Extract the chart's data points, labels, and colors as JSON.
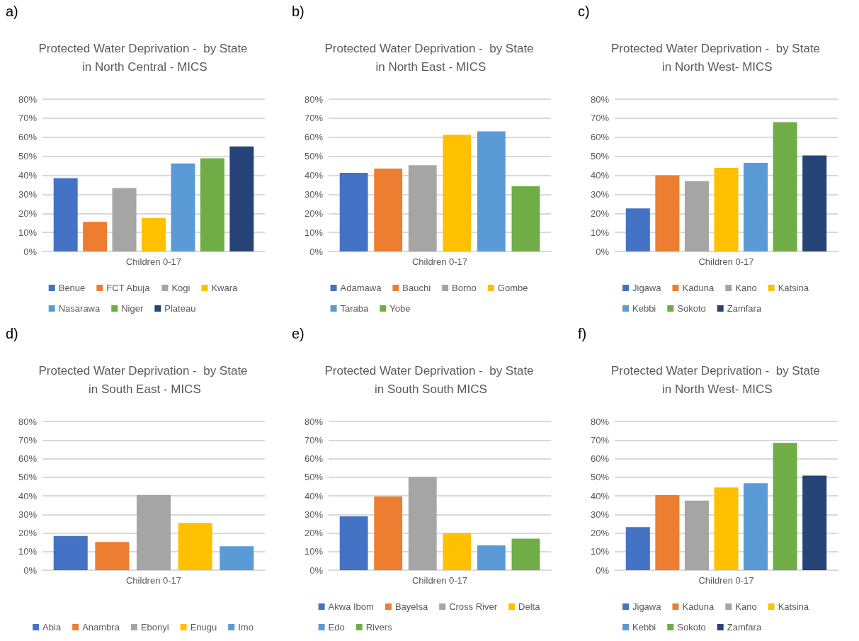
{
  "chart_data": [
    {
      "type": "bar",
      "title": "Protected Water Deprivation -  by State in North Central - MICS",
      "annotations": [
        "a)"
      ],
      "categories": [
        "Children 0-17"
      ],
      "ylim": [
        0,
        80
      ],
      "yticks": [
        {
          "value": 0,
          "label": "0%"
        },
        {
          "value": 10,
          "label": "10%"
        },
        {
          "value": 20,
          "label": "20%"
        },
        {
          "value": 30,
          "label": "30%"
        },
        {
          "value": 40,
          "label": "40%"
        },
        {
          "value": 50,
          "label": "50%"
        },
        {
          "value": 60,
          "label": "60%"
        },
        {
          "value": 70,
          "label": "70%"
        },
        {
          "value": 80,
          "label": "80%"
        }
      ],
      "grid": "y",
      "legend": "bottom",
      "series": [
        {
          "name": "Benue",
          "color": "#4472c4",
          "values": [
            38.5
          ]
        },
        {
          "name": "FCT Abuja",
          "color": "#ed7d31",
          "values": [
            15.5
          ]
        },
        {
          "name": "Kogi",
          "color": "#a5a5a5",
          "values": [
            33.3
          ]
        },
        {
          "name": "Kwara",
          "color": "#ffc000",
          "values": [
            17.6
          ]
        },
        {
          "name": "Nasarawa",
          "color": "#5b9bd5",
          "values": [
            46.2
          ]
        },
        {
          "name": "Niger",
          "color": "#70ad47",
          "values": [
            48.9
          ]
        },
        {
          "name": "Plateau",
          "color": "#264478",
          "values": [
            55.2
          ]
        }
      ]
    },
    {
      "type": "bar",
      "title": "Protected Water Deprivation -  by State in North East - MICS",
      "annotations": [
        "b)"
      ],
      "categories": [
        "Children 0-17"
      ],
      "ylim": [
        0,
        80
      ],
      "yticks": [
        {
          "value": 0,
          "label": "0%"
        },
        {
          "value": 10,
          "label": "10%"
        },
        {
          "value": 20,
          "label": "20%"
        },
        {
          "value": 30,
          "label": "30%"
        },
        {
          "value": 40,
          "label": "40%"
        },
        {
          "value": 50,
          "label": "50%"
        },
        {
          "value": 60,
          "label": "60%"
        },
        {
          "value": 70,
          "label": "70%"
        },
        {
          "value": 80,
          "label": "80%"
        }
      ],
      "grid": "y",
      "legend": "bottom",
      "series": [
        {
          "name": "Adamawa",
          "color": "#4472c4",
          "values": [
            41.3
          ]
        },
        {
          "name": "Bauchi",
          "color": "#ed7d31",
          "values": [
            43.5
          ]
        },
        {
          "name": "Borno",
          "color": "#a5a5a5",
          "values": [
            45.3
          ]
        },
        {
          "name": "Gombe",
          "color": "#ffc000",
          "values": [
            61.3
          ]
        },
        {
          "name": "Taraba",
          "color": "#5b9bd5",
          "values": [
            63.1
          ]
        },
        {
          "name": "Yobe",
          "color": "#70ad47",
          "values": [
            34.2
          ]
        }
      ]
    },
    {
      "type": "bar",
      "title": "Protected Water Deprivation -  by State in North West- MICS",
      "annotations": [
        "c)"
      ],
      "categories": [
        "Children 0-17"
      ],
      "ylim": [
        0,
        80
      ],
      "yticks": [
        {
          "value": 0,
          "label": "0%"
        },
        {
          "value": 10,
          "label": "10%"
        },
        {
          "value": 20,
          "label": "20%"
        },
        {
          "value": 30,
          "label": "30%"
        },
        {
          "value": 40,
          "label": "40%"
        },
        {
          "value": 50,
          "label": "50%"
        },
        {
          "value": 60,
          "label": "60%"
        },
        {
          "value": 70,
          "label": "70%"
        },
        {
          "value": 80,
          "label": "80%"
        }
      ],
      "grid": "y",
      "legend": "bottom",
      "series": [
        {
          "name": "Jigawa",
          "color": "#4472c4",
          "values": [
            22.6
          ]
        },
        {
          "name": "Kaduna",
          "color": "#ed7d31",
          "values": [
            40.0
          ]
        },
        {
          "name": "Kano",
          "color": "#a5a5a5",
          "values": [
            36.9
          ]
        },
        {
          "name": "Katsina",
          "color": "#ffc000",
          "values": [
            43.9
          ]
        },
        {
          "name": "Kebbi",
          "color": "#5b9bd5",
          "values": [
            46.5
          ]
        },
        {
          "name": "Sokoto",
          "color": "#70ad47",
          "values": [
            67.9
          ]
        },
        {
          "name": "Zamfara",
          "color": "#264478",
          "values": [
            50.4
          ]
        }
      ]
    },
    {
      "type": "bar",
      "title": "Protected Water Deprivation -  by State in South East - MICS",
      "annotations": [
        "d)"
      ],
      "categories": [
        "Children 0-17"
      ],
      "ylim": [
        0,
        80
      ],
      "yticks": [
        {
          "value": 0,
          "label": "0%"
        },
        {
          "value": 10,
          "label": "10%"
        },
        {
          "value": 20,
          "label": "20%"
        },
        {
          "value": 30,
          "label": "30%"
        },
        {
          "value": 40,
          "label": "40%"
        },
        {
          "value": 50,
          "label": "50%"
        },
        {
          "value": 60,
          "label": "60%"
        },
        {
          "value": 70,
          "label": "70%"
        },
        {
          "value": 80,
          "label": "80%"
        }
      ],
      "grid": "y",
      "legend": "bottom",
      "series": [
        {
          "name": "Abia",
          "color": "#4472c4",
          "values": [
            18.4
          ]
        },
        {
          "name": "Anambra",
          "color": "#ed7d31",
          "values": [
            15.1
          ]
        },
        {
          "name": "Ebonyi",
          "color": "#a5a5a5",
          "values": [
            40.5
          ]
        },
        {
          "name": "Enugu",
          "color": "#ffc000",
          "values": [
            25.4
          ]
        },
        {
          "name": "Imo",
          "color": "#5b9bd5",
          "values": [
            12.9
          ]
        }
      ]
    },
    {
      "type": "bar",
      "title": "Protected Water Deprivation -  by State in South South MICS",
      "annotations": [
        "e)"
      ],
      "categories": [
        "Children 0-17"
      ],
      "ylim": [
        0,
        80
      ],
      "yticks": [
        {
          "value": 0,
          "label": "0%"
        },
        {
          "value": 10,
          "label": "10%"
        },
        {
          "value": 20,
          "label": "20%"
        },
        {
          "value": 30,
          "label": "30%"
        },
        {
          "value": 40,
          "label": "40%"
        },
        {
          "value": 50,
          "label": "50%"
        },
        {
          "value": 60,
          "label": "60%"
        },
        {
          "value": 70,
          "label": "70%"
        },
        {
          "value": 80,
          "label": "80%"
        }
      ],
      "grid": "y",
      "legend": "bottom",
      "series": [
        {
          "name": "Akwa Ibom",
          "color": "#4472c4",
          "values": [
            29.0
          ]
        },
        {
          "name": "Bayelsa",
          "color": "#ed7d31",
          "values": [
            39.6
          ]
        },
        {
          "name": "Cross River",
          "color": "#a5a5a5",
          "values": [
            50.2
          ]
        },
        {
          "name": "Delta",
          "color": "#ffc000",
          "values": [
            19.9
          ]
        },
        {
          "name": "Edo",
          "color": "#5b9bd5",
          "values": [
            13.3
          ]
        },
        {
          "name": "Rivers",
          "color": "#70ad47",
          "values": [
            17.0
          ]
        }
      ]
    },
    {
      "type": "bar",
      "title": "Protected Water Deprivation -  by State in North West- MICS",
      "annotations": [
        "f)"
      ],
      "categories": [
        "Children 0-17"
      ],
      "ylim": [
        0,
        80
      ],
      "yticks": [
        {
          "value": 0,
          "label": "0%"
        },
        {
          "value": 10,
          "label": "10%"
        },
        {
          "value": 20,
          "label": "20%"
        },
        {
          "value": 30,
          "label": "30%"
        },
        {
          "value": 40,
          "label": "40%"
        },
        {
          "value": 50,
          "label": "50%"
        },
        {
          "value": 60,
          "label": "60%"
        },
        {
          "value": 70,
          "label": "70%"
        },
        {
          "value": 80,
          "label": "80%"
        }
      ],
      "grid": "y",
      "legend": "bottom",
      "series": [
        {
          "name": "Jigawa",
          "color": "#4472c4",
          "values": [
            23.1
          ]
        },
        {
          "name": "Kaduna",
          "color": "#ed7d31",
          "values": [
            40.4
          ]
        },
        {
          "name": "Kano",
          "color": "#a5a5a5",
          "values": [
            37.4
          ]
        },
        {
          "name": "Katsina",
          "color": "#ffc000",
          "values": [
            44.5
          ]
        },
        {
          "name": "Kebbi",
          "color": "#5b9bd5",
          "values": [
            46.8
          ]
        },
        {
          "name": "Sokoto",
          "color": "#70ad47",
          "values": [
            68.5
          ]
        },
        {
          "name": "Zamfara",
          "color": "#264478",
          "values": [
            50.9
          ]
        }
      ]
    }
  ]
}
